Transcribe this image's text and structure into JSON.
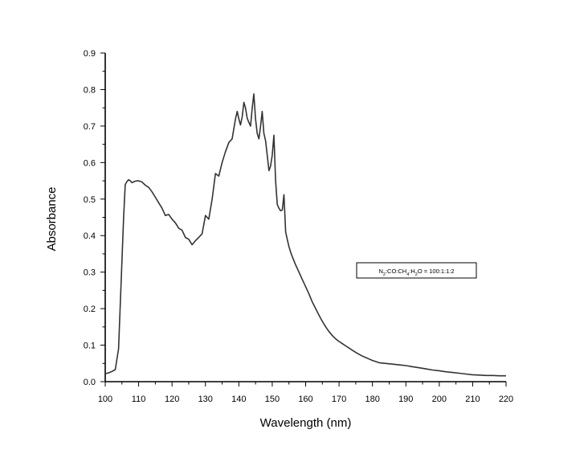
{
  "chart_data": {
    "type": "line",
    "title": "",
    "xlabel": "Wavelength (nm)",
    "ylabel": "Absorbance",
    "xlim": [
      100,
      220
    ],
    "ylim": [
      0.0,
      0.9
    ],
    "x_ticks": [
      100,
      110,
      120,
      130,
      140,
      150,
      160,
      170,
      180,
      190,
      200,
      210,
      220
    ],
    "x_tick_labels": [
      "100",
      "110",
      "120",
      "130",
      "140",
      "150",
      "160",
      "170",
      "180",
      "190",
      "200",
      "210",
      "220"
    ],
    "y_ticks": [
      0.0,
      0.1,
      0.2,
      0.3,
      0.4,
      0.5,
      0.6,
      0.7,
      0.8,
      0.9
    ],
    "y_tick_labels": [
      "0.0",
      "0.1",
      "0.2",
      "0.3",
      "0.4",
      "0.5",
      "0.6",
      "0.7",
      "0.8",
      "0.9"
    ],
    "grid": false,
    "legend_position": "right",
    "legend": {
      "parts": [
        {
          "text": "N",
          "sub": false
        },
        {
          "text": "2",
          "sub": true
        },
        {
          "text": ":CO:CH",
          "sub": false
        },
        {
          "text": "4",
          "sub": true
        },
        {
          "text": ":H",
          "sub": false
        },
        {
          "text": "2",
          "sub": true
        },
        {
          "text": "O  =  100:1:1:2",
          "sub": false
        }
      ]
    },
    "series": [
      {
        "color": "#333333",
        "x": [
          100,
          101,
          102,
          103,
          104,
          105,
          105.5,
          106,
          106.5,
          107,
          107.5,
          108,
          108.5,
          109,
          109.5,
          110,
          111,
          112,
          113,
          114,
          115,
          116,
          117,
          118,
          119,
          120,
          121,
          122,
          123,
          124,
          125,
          126,
          127,
          128,
          129,
          130,
          130.5,
          131,
          132,
          133,
          134,
          135,
          136,
          137,
          138,
          139,
          139.5,
          140,
          140.5,
          141,
          141.5,
          142,
          142.5,
          143,
          143.5,
          144,
          144.5,
          145,
          145.5,
          146,
          146.5,
          147,
          147.5,
          148,
          148.5,
          149,
          149.5,
          150,
          150.5,
          151,
          151.5,
          152,
          152.5,
          153,
          153.5,
          154,
          154.5,
          155,
          155.5,
          156,
          157,
          158,
          159,
          160,
          161,
          162,
          163,
          164,
          165,
          166,
          167,
          168,
          169,
          170,
          171,
          172,
          173,
          174,
          175,
          176,
          177,
          178,
          179,
          180,
          182,
          184,
          186,
          188,
          190,
          192,
          194,
          196,
          198,
          200,
          202,
          204,
          206,
          208,
          210,
          212,
          214,
          216,
          218,
          220
        ],
        "y": [
          0.022,
          0.024,
          0.028,
          0.033,
          0.09,
          0.33,
          0.45,
          0.54,
          0.548,
          0.553,
          0.55,
          0.545,
          0.547,
          0.549,
          0.55,
          0.55,
          0.547,
          0.538,
          0.532,
          0.52,
          0.505,
          0.49,
          0.475,
          0.455,
          0.458,
          0.445,
          0.435,
          0.42,
          0.415,
          0.395,
          0.39,
          0.375,
          0.386,
          0.395,
          0.405,
          0.455,
          0.45,
          0.445,
          0.5,
          0.57,
          0.563,
          0.6,
          0.63,
          0.655,
          0.665,
          0.72,
          0.74,
          0.72,
          0.703,
          0.725,
          0.765,
          0.75,
          0.722,
          0.71,
          0.7,
          0.75,
          0.788,
          0.72,
          0.68,
          0.665,
          0.7,
          0.74,
          0.68,
          0.66,
          0.62,
          0.578,
          0.59,
          0.62,
          0.675,
          0.55,
          0.485,
          0.475,
          0.468,
          0.47,
          0.512,
          0.41,
          0.39,
          0.37,
          0.355,
          0.342,
          0.32,
          0.3,
          0.28,
          0.26,
          0.24,
          0.218,
          0.2,
          0.182,
          0.165,
          0.15,
          0.137,
          0.126,
          0.117,
          0.11,
          0.104,
          0.098,
          0.092,
          0.086,
          0.08,
          0.075,
          0.07,
          0.066,
          0.062,
          0.058,
          0.052,
          0.05,
          0.048,
          0.046,
          0.044,
          0.041,
          0.038,
          0.035,
          0.032,
          0.03,
          0.027,
          0.025,
          0.023,
          0.021,
          0.019,
          0.018,
          0.017,
          0.017,
          0.016,
          0.016
        ]
      }
    ]
  }
}
